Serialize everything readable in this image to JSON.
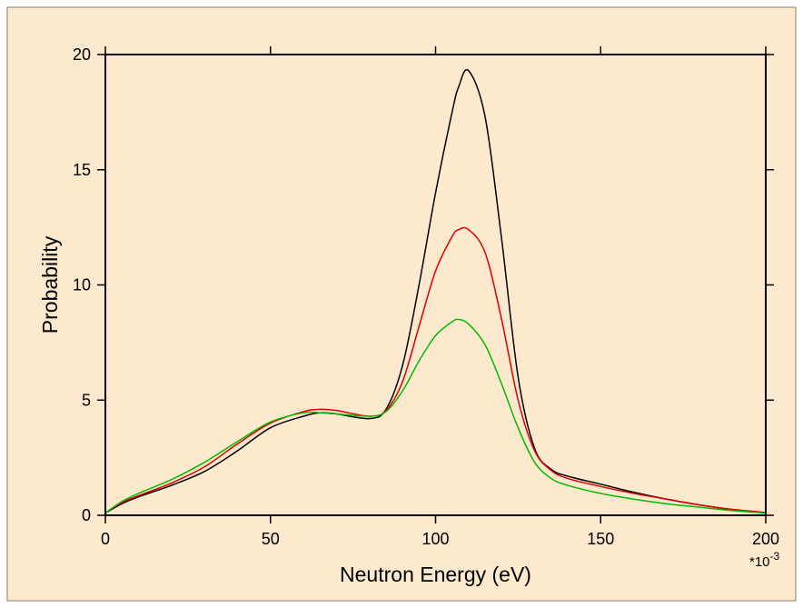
{
  "chart_data": {
    "type": "line",
    "title": "",
    "xlabel": "Neutron Energy (eV)",
    "ylabel": "Probability",
    "x_multiplier_label": "*10",
    "x_multiplier_exp": "-3",
    "xlim": [
      0,
      200
    ],
    "ylim": [
      0,
      20
    ],
    "xticks": [
      0,
      50,
      100,
      150,
      200
    ],
    "yticks": [
      0,
      5,
      10,
      15,
      20
    ],
    "grid": false,
    "legend": "none",
    "colors": {
      "outer_background": "#fde9ce",
      "plot_background": "#fde9ce",
      "frame": "#000000"
    },
    "x": [
      0,
      5,
      10,
      20,
      30,
      40,
      50,
      60,
      65,
      70,
      80,
      85,
      90,
      95,
      100,
      105,
      107,
      110,
      115,
      120,
      125,
      130,
      135,
      140,
      150,
      160,
      170,
      180,
      190,
      200
    ],
    "series": [
      {
        "color": "#000000",
        "values": [
          0.1,
          0.5,
          0.8,
          1.3,
          1.9,
          2.8,
          3.8,
          4.3,
          4.45,
          4.4,
          4.2,
          4.6,
          6.5,
          10.0,
          14.0,
          17.5,
          18.6,
          19.3,
          17.3,
          12.0,
          6.0,
          2.9,
          2.0,
          1.7,
          1.35,
          1.0,
          0.7,
          0.45,
          0.25,
          0.12
        ]
      },
      {
        "color": "#dd0000",
        "values": [
          0.1,
          0.55,
          0.85,
          1.4,
          2.1,
          3.1,
          4.0,
          4.5,
          4.6,
          4.55,
          4.3,
          4.55,
          5.8,
          8.2,
          10.6,
          12.1,
          12.4,
          12.4,
          11.4,
          8.5,
          5.0,
          2.8,
          1.95,
          1.6,
          1.25,
          0.95,
          0.7,
          0.45,
          0.25,
          0.12
        ]
      },
      {
        "color": "#00bb00",
        "values": [
          0.1,
          0.6,
          0.95,
          1.55,
          2.3,
          3.2,
          4.05,
          4.45,
          4.45,
          4.4,
          4.3,
          4.5,
          5.4,
          6.7,
          7.8,
          8.4,
          8.5,
          8.3,
          7.4,
          5.7,
          3.8,
          2.3,
          1.6,
          1.3,
          0.95,
          0.7,
          0.5,
          0.35,
          0.2,
          0.1
        ]
      }
    ]
  }
}
